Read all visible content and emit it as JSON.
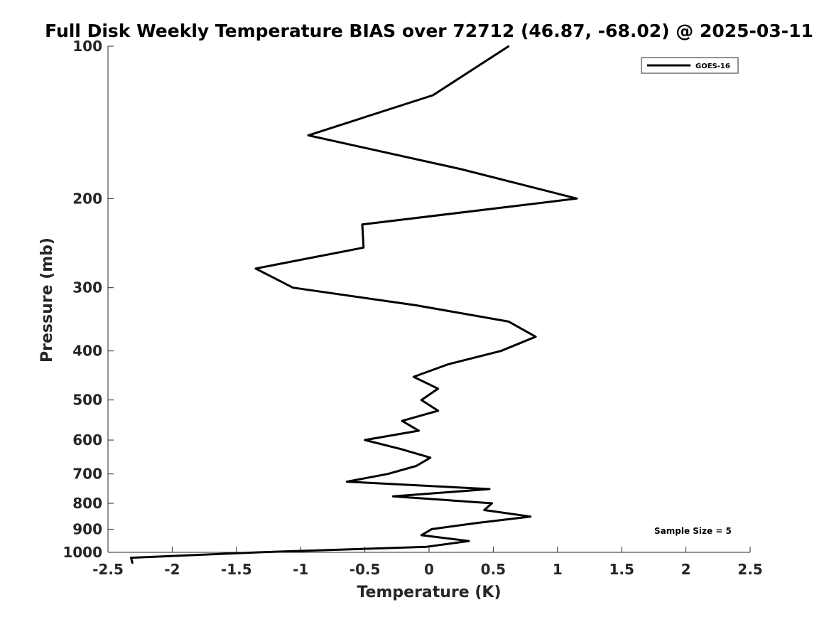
{
  "chart_data": {
    "type": "line",
    "title": "Full Disk Weekly Temperature BIAS over 72712 (46.87, -68.02) @ 2025-03-11",
    "xlabel": "Temperature (K)",
    "ylabel": "Pressure (mb)",
    "xlim": [
      -2.5,
      2.5
    ],
    "ylim": [
      1000,
      100
    ],
    "yscale": "log",
    "grid": false,
    "legend_position": "top-right",
    "x_ticks": [
      -2.5,
      -2,
      -1.5,
      -1,
      -0.5,
      0,
      0.5,
      1,
      1.5,
      2,
      2.5
    ],
    "x_tick_labels": [
      "-2.5",
      "-2",
      "-1.5",
      "-1",
      "-0.5",
      "0",
      "0.5",
      "1",
      "1.5",
      "2",
      "2.5"
    ],
    "y_ticks": [
      100,
      200,
      300,
      400,
      500,
      600,
      700,
      800,
      900,
      1000
    ],
    "y_tick_labels": [
      "100",
      "200",
      "300",
      "400",
      "500",
      "600",
      "700",
      "800",
      "900",
      "1000"
    ],
    "series": [
      {
        "name": "GOES-16",
        "color": "#000000",
        "points": [
          {
            "t": 0.62,
            "p": 100
          },
          {
            "t": 0.03,
            "p": 125
          },
          {
            "t": -0.94,
            "p": 150
          },
          {
            "t": 0.25,
            "p": 175
          },
          {
            "t": 1.15,
            "p": 200
          },
          {
            "t": -0.52,
            "p": 225
          },
          {
            "t": -0.51,
            "p": 250
          },
          {
            "t": -1.35,
            "p": 275
          },
          {
            "t": -1.06,
            "p": 300
          },
          {
            "t": -0.1,
            "p": 325
          },
          {
            "t": 0.62,
            "p": 350
          },
          {
            "t": 0.83,
            "p": 375
          },
          {
            "t": 0.56,
            "p": 400
          },
          {
            "t": 0.15,
            "p": 425
          },
          {
            "t": -0.12,
            "p": 450
          },
          {
            "t": 0.07,
            "p": 475
          },
          {
            "t": -0.06,
            "p": 500
          },
          {
            "t": 0.07,
            "p": 525
          },
          {
            "t": -0.21,
            "p": 550
          },
          {
            "t": -0.08,
            "p": 575
          },
          {
            "t": -0.5,
            "p": 600
          },
          {
            "t": -0.22,
            "p": 625
          },
          {
            "t": 0.01,
            "p": 650
          },
          {
            "t": -0.1,
            "p": 675
          },
          {
            "t": -0.32,
            "p": 700
          },
          {
            "t": -0.64,
            "p": 725
          },
          {
            "t": 0.47,
            "p": 750
          },
          {
            "t": -0.28,
            "p": 775
          },
          {
            "t": 0.49,
            "p": 800
          },
          {
            "t": 0.43,
            "p": 825
          },
          {
            "t": 0.79,
            "p": 850
          },
          {
            "t": 0.37,
            "p": 875
          },
          {
            "t": 0.02,
            "p": 900
          },
          {
            "t": -0.06,
            "p": 925
          },
          {
            "t": 0.31,
            "p": 950
          },
          {
            "t": -0.02,
            "p": 975
          },
          {
            "t": -1.33,
            "p": 1000
          },
          {
            "t": -2.32,
            "p": 1025
          },
          {
            "t": -2.31,
            "p": 1050
          }
        ]
      }
    ],
    "legend": [
      "GOES-16"
    ],
    "annotations": [
      "Sample Size = 5"
    ]
  }
}
